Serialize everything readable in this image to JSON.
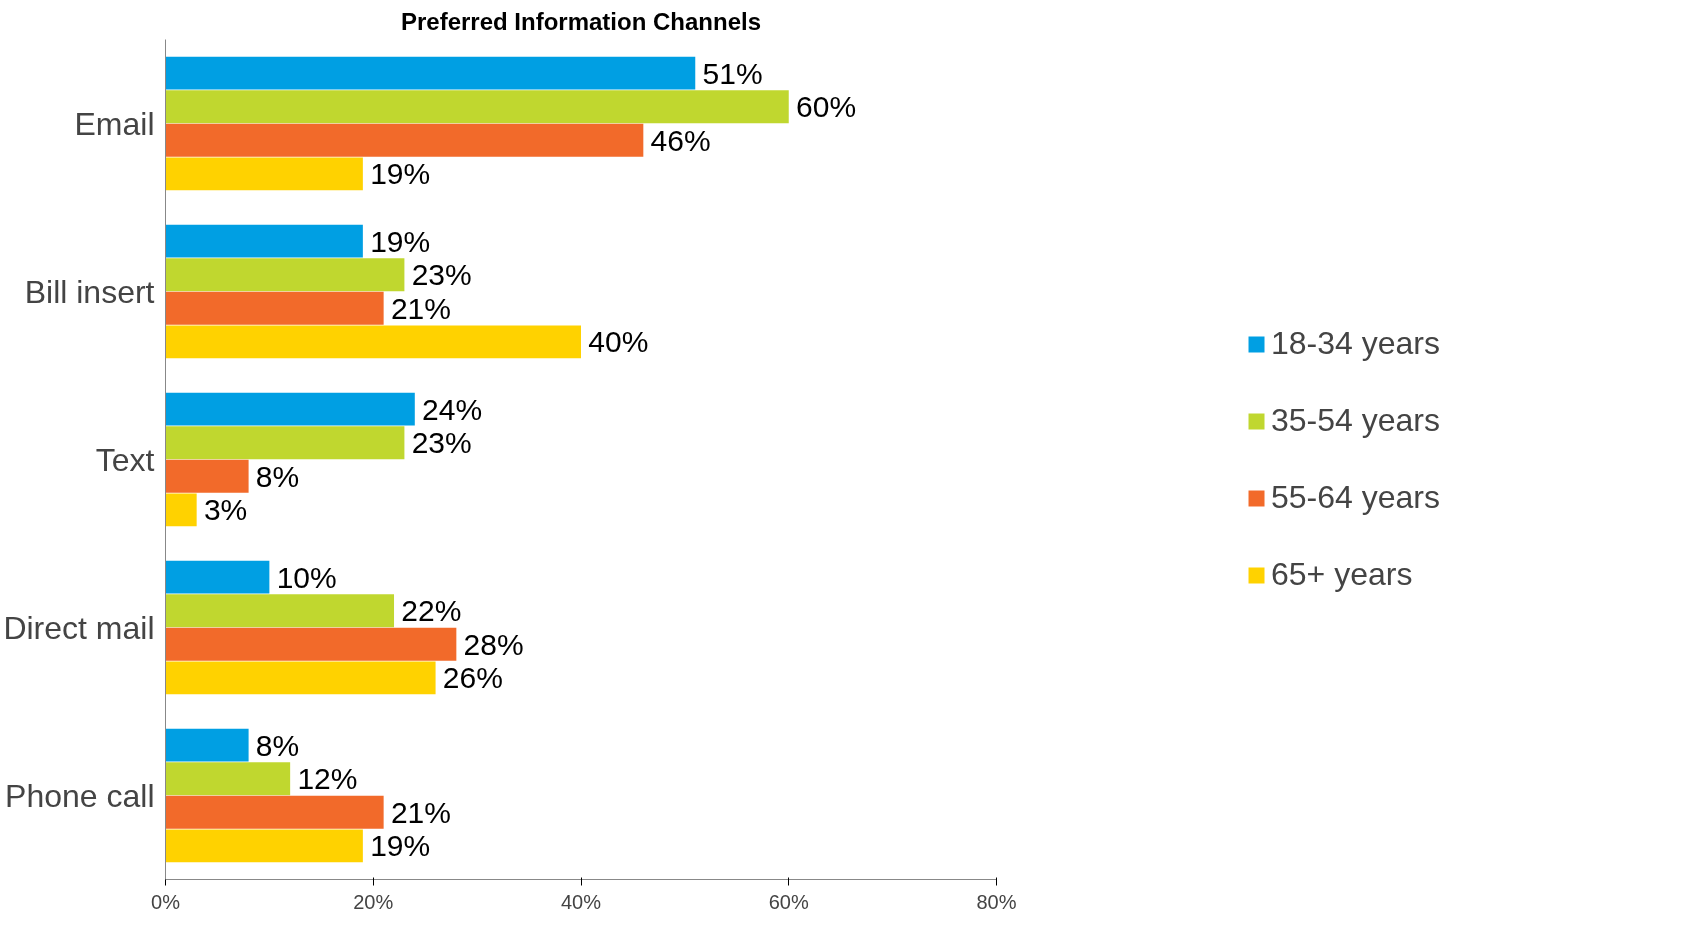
{
  "chart_data": {
    "type": "bar",
    "orientation": "horizontal",
    "title": "Preferred Information Channels",
    "categories": [
      "Email",
      "Bill insert",
      "Text",
      "Direct mail",
      "Phone call"
    ],
    "series": [
      {
        "name": "18-34 years",
        "color": "#009fe3",
        "values": [
          51,
          19,
          24,
          10,
          8
        ],
        "value_labels": [
          "51%",
          "19%",
          "24%",
          "10%",
          "8%"
        ]
      },
      {
        "name": "35-54 years",
        "color": "#c0d72f",
        "values": [
          60,
          23,
          23,
          22,
          12
        ],
        "value_labels": [
          "60%",
          "23%",
          "23%",
          "22%",
          "12%"
        ]
      },
      {
        "name": "55-64 years",
        "color": "#f26a2a",
        "values": [
          46,
          21,
          8,
          28,
          21
        ],
        "value_labels": [
          "46%",
          "21%",
          "8%",
          "28%",
          "21%"
        ]
      },
      {
        "name": "65+ years",
        "color": "#ffd200",
        "values": [
          19,
          40,
          3,
          26,
          19
        ],
        "value_labels": [
          "19%",
          "40%",
          "3%",
          "26%",
          "19%"
        ]
      }
    ],
    "xlim": [
      0,
      80
    ],
    "xticks": [
      {
        "value": 0,
        "label": "0%"
      },
      {
        "value": 20,
        "label": "20%"
      },
      {
        "value": 40,
        "label": "40%"
      },
      {
        "value": 60,
        "label": "60%"
      },
      {
        "value": 80,
        "label": "80%"
      }
    ],
    "grid": false,
    "legend": "right"
  }
}
